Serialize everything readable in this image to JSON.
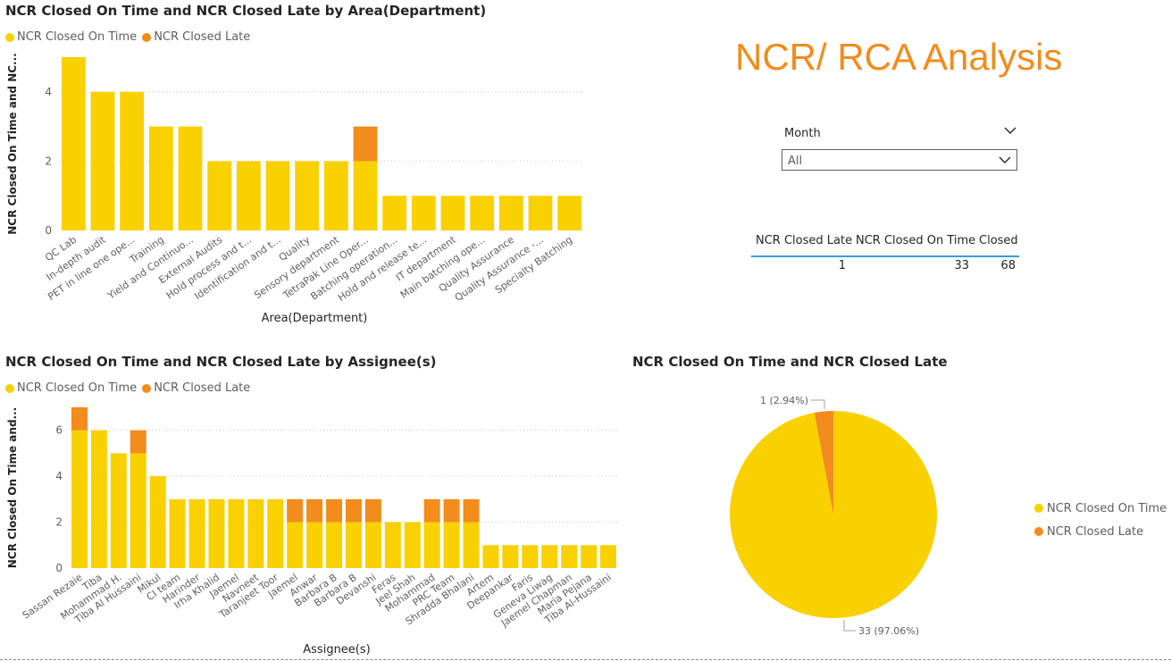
{
  "colors": {
    "on_time": "#f9d000",
    "late": "#f28c1c",
    "title": "#f28c1c",
    "grid": "#c8c6c4",
    "axis_text": "#605e5c"
  },
  "report": {
    "title": "NCR/ RCA Analysis"
  },
  "slicer": {
    "label": "Month",
    "value": "All"
  },
  "table": {
    "headers": [
      "NCR Closed Late",
      "NCR Closed On Time",
      "Closed"
    ],
    "values": [
      "1",
      "33",
      "68"
    ]
  },
  "legend": {
    "on_time": "NCR Closed On Time",
    "late": "NCR Closed Late"
  },
  "chart_data": [
    {
      "type": "bar",
      "stacked": true,
      "title": "NCR Closed On Time and NCR Closed Late by Area(Department)",
      "xlabel": "Area(Department)",
      "ylabel": "NCR Closed On Time and NC...",
      "ylim": [
        0,
        5
      ],
      "yticks": [
        0,
        2,
        4
      ],
      "grid": true,
      "legend_position": "top-left",
      "categories": [
        "QC Lab",
        "In-depth audit",
        "PET in line one ope...",
        "Training",
        "Yield and Continuo...",
        "External Audits",
        "Hold process and t...",
        "Identification and t...",
        "Quality",
        "Sensory department",
        "TetraPak Line Oper...",
        "Batching operation...",
        "Hold and release te...",
        "IT department",
        "Main batching ope...",
        "Quality Assurance",
        "Quality Assurance -...",
        "Specialty Batching"
      ],
      "series": [
        {
          "name": "NCR Closed On Time",
          "values": [
            5,
            4,
            4,
            3,
            3,
            2,
            2,
            2,
            2,
            2,
            2,
            1,
            1,
            1,
            1,
            1,
            1,
            1
          ]
        },
        {
          "name": "NCR Closed Late",
          "values": [
            0,
            0,
            0,
            0,
            0,
            0,
            0,
            0,
            0,
            0,
            1,
            0,
            0,
            0,
            0,
            0,
            0,
            0
          ]
        }
      ]
    },
    {
      "type": "bar",
      "stacked": true,
      "title": "NCR Closed On Time and NCR Closed Late by Assignee(s)",
      "xlabel": "Assignee(s)",
      "ylabel": "NCR Closed On Time and...",
      "ylim": [
        0,
        7
      ],
      "yticks": [
        0,
        2,
        4,
        6
      ],
      "grid": true,
      "legend_position": "top-left",
      "categories": [
        "Sassan Rezaie",
        "Tiba",
        "Mohammad H.",
        "Tiba Al Hussaini",
        "Mikul",
        "CI team",
        "Harinder",
        "Irha Khalid",
        "Jaemel",
        "Navneet",
        "Taranjeet Toor",
        "Jaemel",
        "Anwar",
        "Barbara B",
        "Barbara B",
        "Devanshi",
        "Feras",
        "Jeel Shah",
        "Mohammad",
        "PRC Team",
        "Shradda Bhalani",
        "Artem",
        "Deepankar",
        "Faris",
        "Geneva Liwag",
        "Jaemel Chapman",
        "Maria Pejana",
        "Tiba Al-Hussaini"
      ],
      "series": [
        {
          "name": "NCR Closed On Time",
          "values": [
            6,
            6,
            5,
            5,
            4,
            3,
            3,
            3,
            3,
            3,
            3,
            2,
            2,
            2,
            2,
            2,
            2,
            2,
            2,
            2,
            2,
            1,
            1,
            1,
            1,
            1,
            1,
            1
          ]
        },
        {
          "name": "NCR Closed Late",
          "values": [
            1,
            0,
            0,
            1,
            0,
            0,
            0,
            0,
            0,
            0,
            0,
            1,
            1,
            1,
            1,
            1,
            0,
            0,
            1,
            1,
            1,
            0,
            0,
            0,
            0,
            0,
            0,
            0
          ]
        }
      ]
    },
    {
      "type": "pie",
      "title": "NCR Closed On Time and NCR Closed Late",
      "legend_position": "right",
      "slices": [
        {
          "name": "NCR Closed On Time",
          "value": 33,
          "label": "33 (97.06%)"
        },
        {
          "name": "NCR Closed Late",
          "value": 1,
          "label": "1 (2.94%)"
        }
      ]
    }
  ]
}
